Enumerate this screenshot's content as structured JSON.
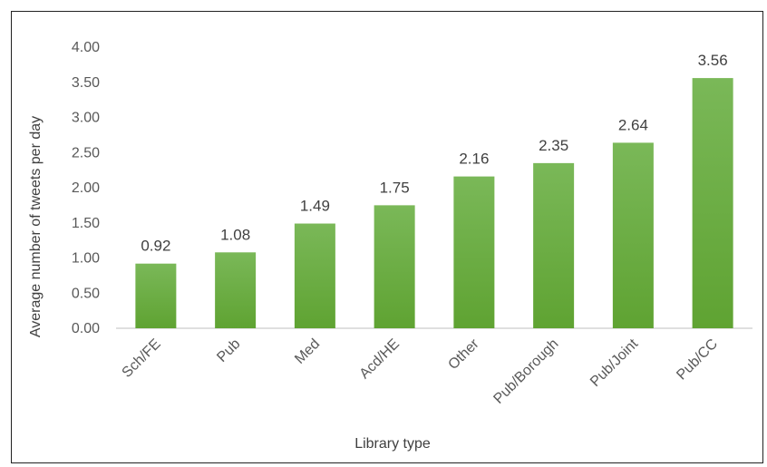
{
  "chart_data": {
    "type": "bar",
    "categories": [
      "Sch/FE",
      "Pub",
      "Med",
      "Acd/HE",
      "Other",
      "Pub/Borough",
      "Pub/Joint",
      "Pub/CC"
    ],
    "values": [
      0.92,
      1.08,
      1.49,
      1.75,
      2.16,
      2.35,
      2.64,
      3.56
    ],
    "data_labels": [
      "0.92",
      "1.08",
      "1.49",
      "1.75",
      "2.16",
      "2.35",
      "2.64",
      "3.56"
    ],
    "xlabel": "Library type",
    "ylabel": "Average number of tweets per day",
    "ylim": [
      0,
      4
    ],
    "yticks": [
      "0.00",
      "0.50",
      "1.00",
      "1.50",
      "2.00",
      "2.50",
      "3.00",
      "3.50",
      "4.00"
    ],
    "grid": false,
    "legend": "none",
    "bar_color": "#6fad47"
  }
}
